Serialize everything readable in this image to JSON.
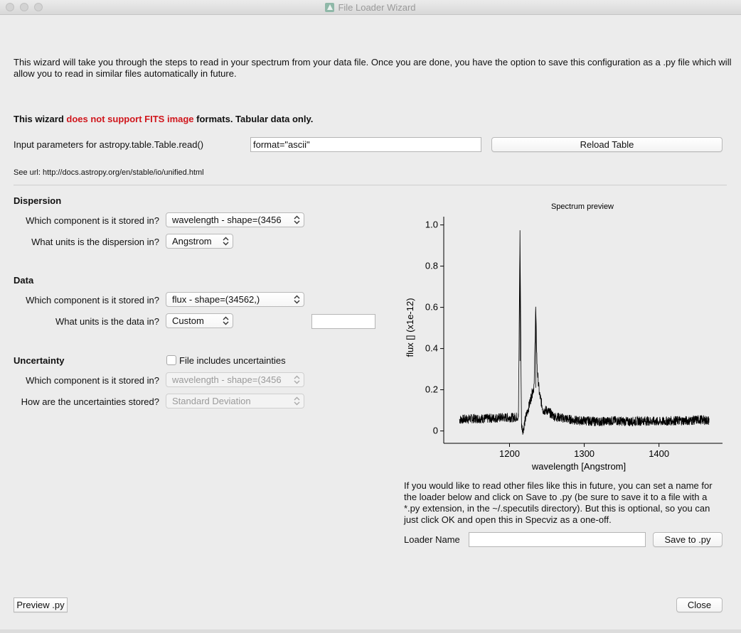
{
  "window": {
    "title": "File Loader Wizard"
  },
  "intro_text": "This wizard will take you through the steps to read in your spectrum from your data file. Once you are done, you have the option to save this configuration as a .py file which will allow you to read in similar files automatically in future.",
  "warning": {
    "prefix": "This wizard ",
    "highlight": "does not support FITS image",
    "suffix": " formats. Tabular data only."
  },
  "input_params": {
    "label": "Input parameters for astropy.table.Table.read()",
    "value": "format=\"ascii\"",
    "reload_button": "Reload Table",
    "see_url": "See url: http://docs.astropy.org/en/stable/io/unified.html"
  },
  "dispersion": {
    "title": "Dispersion",
    "component_label": "Which component is it stored in?",
    "component_value": "wavelength - shape=(3456",
    "units_label": "What units is the dispersion in?",
    "units_value": "Angstrom"
  },
  "data": {
    "title": "Data",
    "component_label": "Which component is it stored in?",
    "component_value": "flux - shape=(34562,)",
    "units_label": "What units is the data in?",
    "units_value": "Custom",
    "custom_units": ""
  },
  "uncertainty": {
    "title": "Uncertainty",
    "checkbox_label": "File includes uncertainties",
    "checked": false,
    "component_label": "Which component is it stored in?",
    "component_value": "wavelength - shape=(3456",
    "stored_label": "How are the uncertainties stored?",
    "stored_value": "Standard Deviation"
  },
  "chart_data": {
    "type": "line",
    "title": "Spectrum preview",
    "xlabel": "wavelength [Angstrom]",
    "ylabel": "flux [] (x1e-12)",
    "xlim": [
      1112,
      1485
    ],
    "ylim": [
      -0.06,
      1.04
    ],
    "x_ticks": [
      1200,
      1300,
      1400
    ],
    "y_ticks": [
      0,
      0.2,
      0.4,
      0.6,
      0.8,
      1.0
    ],
    "y_tick_labels": [
      "0",
      "0.2",
      "0.4",
      "0.6",
      "0.8",
      "1.0"
    ],
    "grid": false,
    "series": [
      {
        "color": "#000000",
        "x": [
          1133,
          1150,
          1170,
          1190,
          1205,
          1212,
          1214,
          1216,
          1218,
          1222,
          1226,
          1230,
          1233,
          1235,
          1237,
          1240,
          1245,
          1250,
          1260,
          1275,
          1290,
          1300,
          1320,
          1340,
          1360,
          1380,
          1400,
          1420,
          1440,
          1455,
          1467
        ],
        "y": [
          0.055,
          0.06,
          0.06,
          0.065,
          0.065,
          0.07,
          0.97,
          0.03,
          0.0,
          0.07,
          0.12,
          0.18,
          0.22,
          0.6,
          0.3,
          0.18,
          0.1,
          0.1,
          0.07,
          0.06,
          0.05,
          0.05,
          0.045,
          0.05,
          0.045,
          0.05,
          0.045,
          0.05,
          0.05,
          0.055,
          0.05
        ]
      }
    ]
  },
  "loader": {
    "help_text": "If you would like to read other files like this in future, you can set a name for the loader below and click on Save to .py (be sure to save it to a file with a *.py extension, in the ~/.specutils directory). But this is optional, so you can just click OK and open this in Specviz as a one-off.",
    "name_label": "Loader Name",
    "name_value": "",
    "save_button": "Save to .py"
  },
  "footer": {
    "preview_button": "Preview .py",
    "close_button": "Close"
  },
  "colors": {
    "warning_red": "#d0161c",
    "window_bg": "#ececec"
  }
}
